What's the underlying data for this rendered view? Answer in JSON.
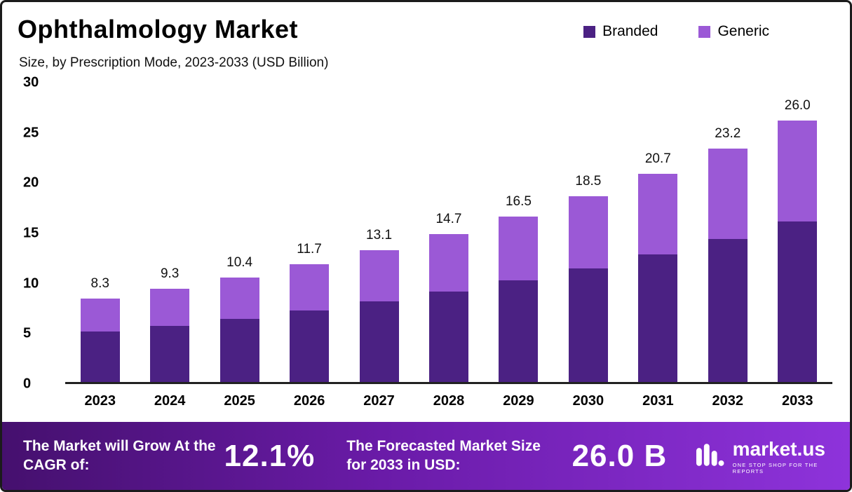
{
  "header": {
    "title": "Ophthalmology Market",
    "subtitle": "Size, by Prescription Mode, 2023-2033 (USD Billion)"
  },
  "legend": [
    {
      "label": "Branded",
      "color": "#4b2183"
    },
    {
      "label": "Generic",
      "color": "#9b59d6"
    }
  ],
  "chart_data": {
    "type": "bar",
    "stacked": true,
    "title": "Ophthalmology Market",
    "subtitle": "Size, by Prescription Mode, 2023-2033 (USD Billion)",
    "categories": [
      "2023",
      "2024",
      "2025",
      "2026",
      "2027",
      "2028",
      "2029",
      "2030",
      "2031",
      "2032",
      "2033"
    ],
    "series": [
      {
        "name": "Branded",
        "color": "#4b2183",
        "values": [
          5.0,
          5.6,
          6.3,
          7.1,
          8.0,
          9.0,
          10.1,
          11.3,
          12.7,
          14.2,
          16.0
        ]
      },
      {
        "name": "Generic",
        "color": "#9b59d6",
        "values": [
          3.3,
          3.7,
          4.1,
          4.6,
          5.1,
          5.7,
          6.4,
          7.2,
          8.0,
          9.0,
          10.0
        ]
      }
    ],
    "totals": [
      8.3,
      9.3,
      10.4,
      11.7,
      13.1,
      14.7,
      16.5,
      18.5,
      20.7,
      23.2,
      26.0
    ],
    "total_labels": [
      "8.3",
      "9.3",
      "10.4",
      "11.7",
      "13.1",
      "14.7",
      "16.5",
      "18.5",
      "20.7",
      "23.2",
      "26.0"
    ],
    "ylim": [
      0,
      30
    ],
    "yticks": [
      0,
      5,
      10,
      15,
      20,
      25,
      30
    ],
    "ylabel": "",
    "xlabel": "",
    "legend_position": "top-right",
    "grid": false
  },
  "footer": {
    "cagr_label": "The Market will Grow At the CAGR of:",
    "cagr_value": "12.1%",
    "forecast_label": "The Forecasted Market Size for 2033 in USD:",
    "forecast_value": "26.0 B",
    "brand_name": "market.us",
    "brand_tagline": "ONE STOP SHOP FOR THE REPORTS"
  }
}
